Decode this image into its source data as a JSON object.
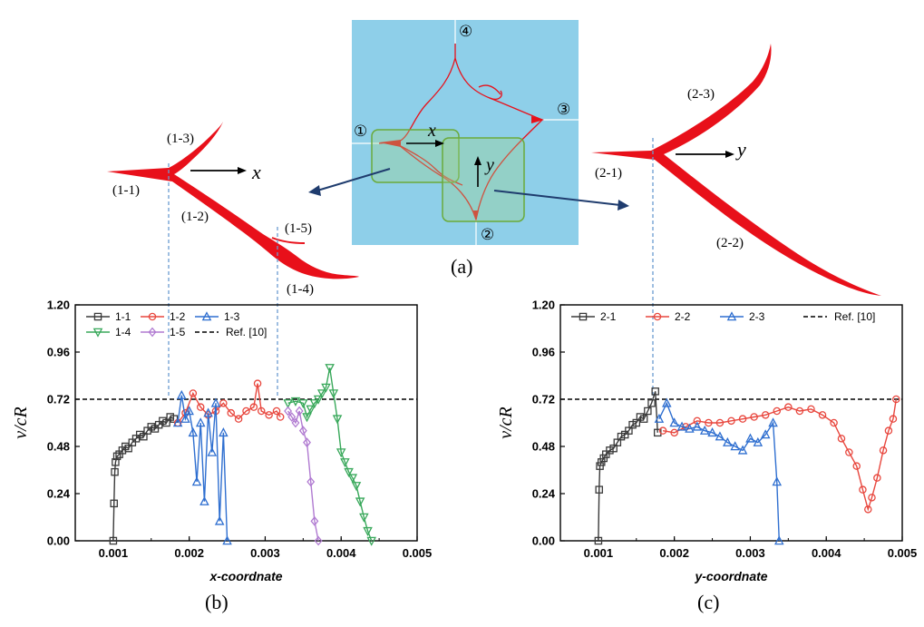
{
  "panel_a": {
    "label": "(a)",
    "markers": [
      "①",
      "②",
      "③",
      "④"
    ],
    "x_axis": "x",
    "y_axis": "y",
    "colors": {
      "background": "#8ecfe9",
      "box": "#7fb84b",
      "crack": "#e8101a",
      "arrow": "#1f3c6e"
    }
  },
  "zoom_1": {
    "labels": [
      "(1-1)",
      "(1-2)",
      "(1-3)",
      "(1-4)",
      "(1-5)"
    ],
    "axis": "x"
  },
  "zoom_2": {
    "labels": [
      "(2-1)",
      "(2-2)",
      "(2-3)"
    ],
    "axis": "y"
  },
  "chart_data": [
    {
      "type": "scatter",
      "panel_label": "(b)",
      "xlabel": "x-coordnate",
      "ylabel": "v/cR",
      "xlim": [
        0.0005,
        0.005
      ],
      "ylim": [
        0,
        1.2
      ],
      "x_ticks": [
        "0.001",
        "0.002",
        "0.003",
        "0.004",
        "0.005"
      ],
      "y_ticks": [
        "0.00",
        "0.24",
        "0.48",
        "0.72",
        "0.96",
        "1.20"
      ],
      "reference": {
        "name": "Ref. [10]",
        "y": 0.72
      },
      "legend_position": "top-left",
      "series": [
        {
          "name": "1-1",
          "color": "#3a3a3a",
          "marker": "square",
          "x": [
            0.001,
            0.00101,
            0.00102,
            0.00103,
            0.00105,
            0.00108,
            0.00112,
            0.00116,
            0.0012,
            0.00125,
            0.0013,
            0.00135,
            0.0014,
            0.00145,
            0.0015,
            0.00155,
            0.0016,
            0.00165,
            0.0017,
            0.00175,
            0.0018
          ],
          "y": [
            0.0,
            0.19,
            0.35,
            0.4,
            0.43,
            0.44,
            0.46,
            0.48,
            0.47,
            0.5,
            0.52,
            0.54,
            0.53,
            0.56,
            0.58,
            0.57,
            0.59,
            0.61,
            0.6,
            0.63,
            0.62
          ]
        },
        {
          "name": "1-2",
          "color": "#e8473e",
          "marker": "circle",
          "x": [
            0.00185,
            0.00195,
            0.00205,
            0.00215,
            0.00225,
            0.00235,
            0.00245,
            0.00255,
            0.00265,
            0.00275,
            0.00285,
            0.0029,
            0.00295,
            0.00305,
            0.00315,
            0.0032
          ],
          "y": [
            0.6,
            0.65,
            0.75,
            0.68,
            0.64,
            0.66,
            0.7,
            0.65,
            0.62,
            0.66,
            0.68,
            0.8,
            0.66,
            0.64,
            0.66,
            0.63
          ]
        },
        {
          "name": "1-3",
          "color": "#2f6fd0",
          "marker": "triangle-up",
          "x": [
            0.00185,
            0.0019,
            0.00195,
            0.002,
            0.00205,
            0.0021,
            0.00215,
            0.0022,
            0.00225,
            0.0023,
            0.00235,
            0.0024,
            0.00245,
            0.0025
          ],
          "y": [
            0.6,
            0.74,
            0.62,
            0.66,
            0.55,
            0.3,
            0.6,
            0.2,
            0.65,
            0.45,
            0.7,
            0.1,
            0.55,
            0.0
          ]
        },
        {
          "name": "1-4",
          "color": "#38a85a",
          "marker": "triangle-down",
          "x": [
            0.0033,
            0.0034,
            0.0035,
            0.00355,
            0.0036,
            0.00365,
            0.0037,
            0.00375,
            0.0038,
            0.00385,
            0.0039,
            0.00395,
            0.004,
            0.00405,
            0.0041,
            0.00415,
            0.0042,
            0.00425,
            0.0043,
            0.00435,
            0.0044
          ],
          "y": [
            0.7,
            0.71,
            0.7,
            0.63,
            0.67,
            0.7,
            0.72,
            0.75,
            0.78,
            0.88,
            0.75,
            0.62,
            0.45,
            0.4,
            0.35,
            0.32,
            0.28,
            0.2,
            0.12,
            0.05,
            0.0
          ]
        },
        {
          "name": "1-5",
          "color": "#b07ad1",
          "marker": "diamond",
          "x": [
            0.0033,
            0.00335,
            0.0034,
            0.00345,
            0.0035,
            0.00355,
            0.0036,
            0.00365,
            0.0037
          ],
          "y": [
            0.66,
            0.63,
            0.6,
            0.66,
            0.56,
            0.5,
            0.3,
            0.1,
            0.0
          ]
        }
      ]
    },
    {
      "type": "scatter",
      "panel_label": "(c)",
      "xlabel": "y-coordnate",
      "ylabel": "v/cR",
      "xlim": [
        0.0005,
        0.005
      ],
      "ylim": [
        0,
        1.2
      ],
      "x_ticks": [
        "0.001",
        "0.002",
        "0.003",
        "0.004",
        "0.005"
      ],
      "y_ticks": [
        "0.00",
        "0.24",
        "0.48",
        "0.72",
        "0.96",
        "1.20"
      ],
      "reference": {
        "name": "Ref. [10]",
        "y": 0.72
      },
      "legend_position": "top-left",
      "series": [
        {
          "name": "2-1",
          "color": "#3a3a3a",
          "marker": "square",
          "x": [
            0.001,
            0.00101,
            0.00102,
            0.00104,
            0.00107,
            0.0011,
            0.00115,
            0.0012,
            0.00125,
            0.0013,
            0.00135,
            0.0014,
            0.00145,
            0.0015,
            0.00155,
            0.0016,
            0.00165,
            0.0017,
            0.00175,
            0.00178
          ],
          "y": [
            0.0,
            0.26,
            0.38,
            0.4,
            0.42,
            0.44,
            0.46,
            0.47,
            0.5,
            0.53,
            0.54,
            0.56,
            0.59,
            0.6,
            0.63,
            0.62,
            0.66,
            0.7,
            0.76,
            0.55
          ]
        },
        {
          "name": "2-2",
          "color": "#e8473e",
          "marker": "circle",
          "x": [
            0.00185,
            0.002,
            0.00215,
            0.0023,
            0.00245,
            0.0026,
            0.00275,
            0.0029,
            0.00305,
            0.0032,
            0.00335,
            0.0035,
            0.00365,
            0.0038,
            0.00395,
            0.0041,
            0.0042,
            0.0043,
            0.0044,
            0.00448,
            0.00455,
            0.0046,
            0.00467,
            0.00475,
            0.00482,
            0.00488,
            0.00492
          ],
          "y": [
            0.56,
            0.55,
            0.58,
            0.61,
            0.6,
            0.6,
            0.61,
            0.62,
            0.63,
            0.64,
            0.66,
            0.68,
            0.66,
            0.67,
            0.64,
            0.6,
            0.52,
            0.45,
            0.38,
            0.26,
            0.16,
            0.22,
            0.32,
            0.46,
            0.56,
            0.62,
            0.72
          ]
        },
        {
          "name": "2-3",
          "color": "#2f6fd0",
          "marker": "triangle-up",
          "x": [
            0.0018,
            0.0019,
            0.002,
            0.0021,
            0.0022,
            0.0023,
            0.0024,
            0.0025,
            0.0026,
            0.0027,
            0.0028,
            0.0029,
            0.003,
            0.0031,
            0.0032,
            0.0033,
            0.00335,
            0.00338
          ],
          "y": [
            0.62,
            0.7,
            0.6,
            0.58,
            0.57,
            0.58,
            0.56,
            0.55,
            0.53,
            0.5,
            0.48,
            0.46,
            0.52,
            0.5,
            0.54,
            0.6,
            0.3,
            0.0
          ]
        }
      ]
    }
  ]
}
